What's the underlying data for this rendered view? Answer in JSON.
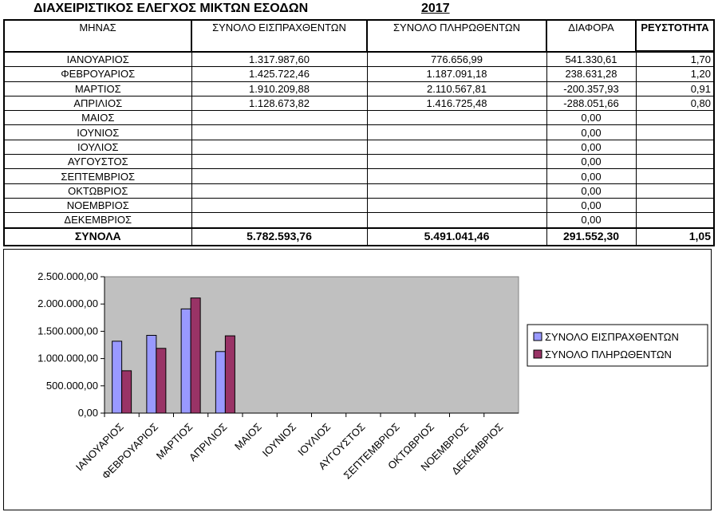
{
  "title": "ΔΙΑΧΕΙΡΙΣΤΙΚΟΣ ΕΛΕΓΧΟΣ ΜΙΚΤΩΝ ΕΣΟΔΩΝ",
  "year": "2017",
  "table": {
    "headers": [
      "ΜΗΝΑΣ",
      "ΣΥΝΟΛΟ ΕΙΣΠΡΑΧΘΕΝΤΩΝ",
      "ΣΥΝΟΛΟ ΠΛΗΡΩΘΕΝΤΩΝ",
      "ΔΙΑΦΟΡΑ",
      "ΡΕΥΣΤΟΤΗΤΑ"
    ],
    "rows": [
      [
        "ΙΑΝΟΥΑΡΙΟΣ",
        "1.317.987,60",
        "776.656,99",
        "541.330,61",
        "1,70"
      ],
      [
        "ΦΕΒΡΟΥΑΡΙΟΣ",
        "1.425.722,46",
        "1.187.091,18",
        "238.631,28",
        "1,20"
      ],
      [
        "ΜΑΡΤΙΟΣ",
        "1.910.209,88",
        "2.110.567,81",
        "-200.357,93",
        "0,91"
      ],
      [
        "ΑΠΡΙΛΙΟΣ",
        "1.128.673,82",
        "1.416.725,48",
        "-288.051,66",
        "0,80"
      ],
      [
        "ΜΑΙΟΣ",
        "",
        "",
        "0,00",
        ""
      ],
      [
        "ΙΟΥΝΙΟΣ",
        "",
        "",
        "0,00",
        ""
      ],
      [
        "ΙΟΥΛΙΟΣ",
        "",
        "",
        "0,00",
        ""
      ],
      [
        "ΑΥΓΟΥΣΤΟΣ",
        "",
        "",
        "0,00",
        ""
      ],
      [
        "ΣΕΠΤΕΜΒΡΙΟΣ",
        "",
        "",
        "0,00",
        ""
      ],
      [
        "ΟΚΤΩΒΡΙΟΣ",
        "",
        "",
        "0,00",
        ""
      ],
      [
        "ΝΟΕΜΒΡΙΟΣ",
        "",
        "",
        "0,00",
        ""
      ],
      [
        "ΔΕΚΕΜΒΡΙΟΣ",
        "",
        "",
        "0,00",
        ""
      ]
    ],
    "totals": [
      "ΣΥΝΟΛΑ",
      "5.782.593,76",
      "5.491.041,46",
      "291.552,30",
      "1,05"
    ]
  },
  "chart_data": {
    "type": "bar",
    "categories": [
      "ΙΑΝΟΥΑΡΙΟΣ",
      "ΦΕΒΡΟΥΑΡΙΟΣ",
      "ΜΑΡΤΙΟΣ",
      "ΑΠΡΙΛΙΟΣ",
      "ΜΑΙΟΣ",
      "ΙΟΥΝΙΟΣ",
      "ΙΟΥΛΙΟΣ",
      "ΑΥΓΟΥΣΤΟΣ",
      "ΣΕΠΤΕΜΒΡΙΟΣ",
      "ΟΚΤΩΒΡΙΟΣ",
      "ΝΟΕΜΒΡΙΟΣ",
      "ΔΕΚΕΜΒΡΙΟΣ"
    ],
    "series": [
      {
        "name": "ΣΥΝΟΛΟ ΕΙΣΠΡΑΧΘΕΝΤΩΝ",
        "color": "#9999ff",
        "values": [
          1317987.6,
          1425722.46,
          1910209.88,
          1128673.82,
          null,
          null,
          null,
          null,
          null,
          null,
          null,
          null
        ]
      },
      {
        "name": "ΣΥΝΟΛΟ ΠΛΗΡΩΘΕΝΤΩΝ",
        "color": "#993366",
        "values": [
          776656.99,
          1187091.18,
          2110567.81,
          1416725.48,
          null,
          null,
          null,
          null,
          null,
          null,
          null,
          null
        ]
      }
    ],
    "ylim": [
      0,
      2500000
    ],
    "yticks": [
      0,
      500000,
      1000000,
      1500000,
      2000000,
      2500000
    ],
    "ytick_labels": [
      "0,00",
      "500.000,00",
      "1.000.000,00",
      "1.500.000,00",
      "2.000.000,00",
      "2.500.000,00"
    ],
    "title": "",
    "xlabel": "",
    "ylabel": "",
    "grid": false,
    "plot_background": "#c0c0c0",
    "legend": "right"
  }
}
